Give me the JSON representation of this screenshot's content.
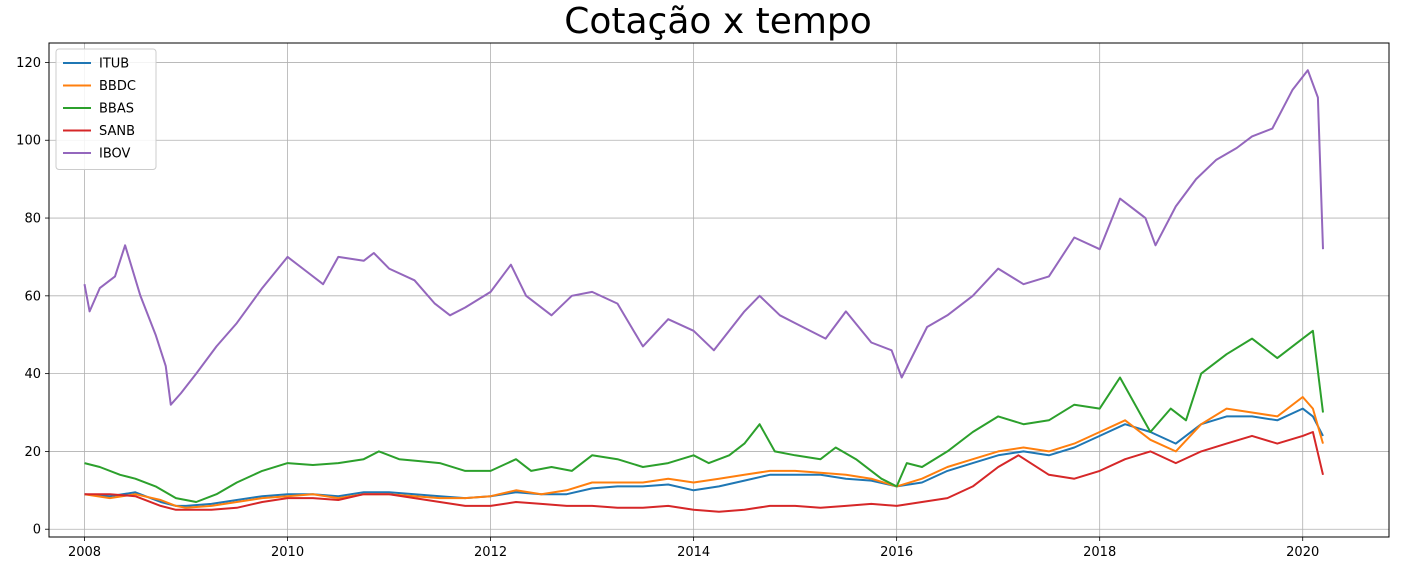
{
  "chart_data": {
    "type": "line",
    "title": "Cotação x tempo",
    "xlabel": "",
    "ylabel": "",
    "xlim": [
      2007.65,
      2020.85
    ],
    "ylim": [
      -2,
      125
    ],
    "x_ticks": [
      2008,
      2010,
      2012,
      2014,
      2016,
      2018,
      2020
    ],
    "y_ticks": [
      0,
      20,
      40,
      60,
      80,
      100,
      120
    ],
    "grid": true,
    "legend_position": "top-left",
    "series": [
      {
        "name": "ITUB",
        "color": "#1f77b4",
        "x": [
          2008.0,
          2008.25,
          2008.5,
          2008.75,
          2008.9,
          2009.0,
          2009.25,
          2009.5,
          2009.75,
          2010.0,
          2010.25,
          2010.5,
          2010.75,
          2011.0,
          2011.25,
          2011.5,
          2011.75,
          2012.0,
          2012.25,
          2012.5,
          2012.75,
          2013.0,
          2013.25,
          2013.5,
          2013.75,
          2014.0,
          2014.25,
          2014.5,
          2014.75,
          2015.0,
          2015.25,
          2015.5,
          2015.75,
          2016.0,
          2016.25,
          2016.5,
          2016.75,
          2017.0,
          2017.25,
          2017.5,
          2017.75,
          2018.0,
          2018.25,
          2018.5,
          2018.75,
          2019.0,
          2019.25,
          2019.5,
          2019.75,
          2020.0,
          2020.1,
          2020.2
        ],
        "y": [
          9,
          8.5,
          9.5,
          7,
          6,
          6,
          6.5,
          7.5,
          8.5,
          9,
          9,
          8.5,
          9.5,
          9.5,
          9,
          8.5,
          8,
          8.5,
          9.5,
          9,
          9,
          10.5,
          11,
          11,
          11.5,
          10,
          11,
          12.5,
          14,
          14,
          14,
          13,
          12.5,
          11,
          12,
          15,
          17,
          19,
          20,
          19,
          21,
          24,
          27,
          25,
          22,
          27,
          29,
          29,
          28,
          31,
          29,
          24
        ]
      },
      {
        "name": "BBDC",
        "color": "#ff7f0e",
        "x": [
          2008.0,
          2008.25,
          2008.5,
          2008.75,
          2008.9,
          2009.0,
          2009.25,
          2009.5,
          2009.75,
          2010.0,
          2010.25,
          2010.5,
          2010.75,
          2011.0,
          2011.25,
          2011.5,
          2011.75,
          2012.0,
          2012.25,
          2012.5,
          2012.75,
          2013.0,
          2013.25,
          2013.5,
          2013.75,
          2014.0,
          2014.25,
          2014.5,
          2014.75,
          2015.0,
          2015.25,
          2015.5,
          2015.75,
          2016.0,
          2016.25,
          2016.5,
          2016.75,
          2017.0,
          2017.25,
          2017.5,
          2017.75,
          2018.0,
          2018.25,
          2018.5,
          2018.75,
          2019.0,
          2019.25,
          2019.5,
          2019.75,
          2020.0,
          2020.1,
          2020.2
        ],
        "y": [
          9,
          8,
          9,
          7.5,
          6,
          5.5,
          6,
          7,
          8,
          8.5,
          9,
          8,
          9,
          9,
          8.5,
          8,
          8,
          8.5,
          10,
          9,
          10,
          12,
          12,
          12,
          13,
          12,
          13,
          14,
          15,
          15,
          14.5,
          14,
          13,
          11,
          13,
          16,
          18,
          20,
          21,
          20,
          22,
          25,
          28,
          23,
          20,
          27,
          31,
          30,
          29,
          34,
          31,
          22
        ]
      },
      {
        "name": "BBAS",
        "color": "#2ca02c",
        "x": [
          2008.0,
          2008.15,
          2008.35,
          2008.5,
          2008.7,
          2008.9,
          2009.1,
          2009.3,
          2009.5,
          2009.75,
          2010.0,
          2010.25,
          2010.5,
          2010.75,
          2010.9,
          2011.1,
          2011.3,
          2011.5,
          2011.75,
          2012.0,
          2012.25,
          2012.4,
          2012.6,
          2012.8,
          2013.0,
          2013.25,
          2013.5,
          2013.75,
          2014.0,
          2014.15,
          2014.35,
          2014.5,
          2014.65,
          2014.8,
          2015.0,
          2015.25,
          2015.4,
          2015.6,
          2015.85,
          2016.0,
          2016.1,
          2016.25,
          2016.5,
          2016.75,
          2017.0,
          2017.25,
          2017.5,
          2017.75,
          2018.0,
          2018.2,
          2018.5,
          2018.7,
          2018.85,
          2019.0,
          2019.25,
          2019.5,
          2019.75,
          2020.0,
          2020.1,
          2020.2
        ],
        "y": [
          17,
          16,
          14,
          13,
          11,
          8,
          7,
          9,
          12,
          15,
          17,
          16.5,
          17,
          18,
          20,
          18,
          17.5,
          17,
          15,
          15,
          18,
          15,
          16,
          15,
          19,
          18,
          16,
          17,
          19,
          17,
          19,
          22,
          27,
          20,
          19,
          18,
          21,
          18,
          13,
          11,
          17,
          16,
          20,
          25,
          29,
          27,
          28,
          32,
          31,
          39,
          25,
          31,
          28,
          40,
          45,
          49,
          44,
          49,
          51,
          30
        ]
      },
      {
        "name": "SANB",
        "color": "#d62728",
        "x": [
          2008.0,
          2008.25,
          2008.5,
          2008.75,
          2008.9,
          2009.0,
          2009.25,
          2009.5,
          2009.75,
          2010.0,
          2010.25,
          2010.5,
          2010.75,
          2011.0,
          2011.25,
          2011.5,
          2011.75,
          2012.0,
          2012.25,
          2012.5,
          2012.75,
          2013.0,
          2013.25,
          2013.5,
          2013.75,
          2014.0,
          2014.25,
          2014.5,
          2014.75,
          2015.0,
          2015.25,
          2015.5,
          2015.75,
          2016.0,
          2016.25,
          2016.5,
          2016.75,
          2017.0,
          2017.2,
          2017.5,
          2017.75,
          2018.0,
          2018.25,
          2018.5,
          2018.75,
          2019.0,
          2019.25,
          2019.5,
          2019.75,
          2020.0,
          2020.1,
          2020.2
        ],
        "y": [
          9,
          9,
          8.5,
          6,
          5,
          5,
          5,
          5.5,
          7,
          8,
          8,
          7.5,
          9,
          9,
          8,
          7,
          6,
          6,
          7,
          6.5,
          6,
          6,
          5.5,
          5.5,
          6,
          5,
          4.5,
          5,
          6,
          6,
          5.5,
          6,
          6.5,
          6,
          7,
          8,
          11,
          16,
          19,
          14,
          13,
          15,
          18,
          20,
          17,
          20,
          22,
          24,
          22,
          24,
          25,
          14
        ]
      },
      {
        "name": "IBOV",
        "color": "#9467bd",
        "x": [
          2008.0,
          2008.05,
          2008.15,
          2008.3,
          2008.4,
          2008.55,
          2008.7,
          2008.8,
          2008.85,
          2008.95,
          2009.1,
          2009.3,
          2009.5,
          2009.75,
          2010.0,
          2010.2,
          2010.35,
          2010.5,
          2010.75,
          2010.85,
          2011.0,
          2011.25,
          2011.45,
          2011.6,
          2011.75,
          2012.0,
          2012.2,
          2012.35,
          2012.6,
          2012.8,
          2013.0,
          2013.25,
          2013.5,
          2013.75,
          2014.0,
          2014.2,
          2014.5,
          2014.65,
          2014.85,
          2015.0,
          2015.3,
          2015.5,
          2015.75,
          2015.95,
          2016.05,
          2016.3,
          2016.5,
          2016.75,
          2017.0,
          2017.25,
          2017.5,
          2017.75,
          2018.0,
          2018.2,
          2018.45,
          2018.55,
          2018.75,
          2018.95,
          2019.15,
          2019.35,
          2019.5,
          2019.7,
          2019.9,
          2020.05,
          2020.15,
          2020.2
        ],
        "y": [
          63,
          56,
          62,
          65,
          73,
          60,
          50,
          42,
          32,
          35,
          40,
          47,
          53,
          62,
          70,
          66,
          63,
          70,
          69,
          71,
          67,
          64,
          58,
          55,
          57,
          61,
          68,
          60,
          55,
          60,
          61,
          58,
          47,
          54,
          51,
          46,
          56,
          60,
          55,
          53,
          49,
          56,
          48,
          46,
          39,
          52,
          55,
          60,
          67,
          63,
          65,
          75,
          72,
          85,
          80,
          73,
          83,
          90,
          95,
          98,
          101,
          103,
          113,
          118,
          111,
          72
        ]
      }
    ]
  }
}
